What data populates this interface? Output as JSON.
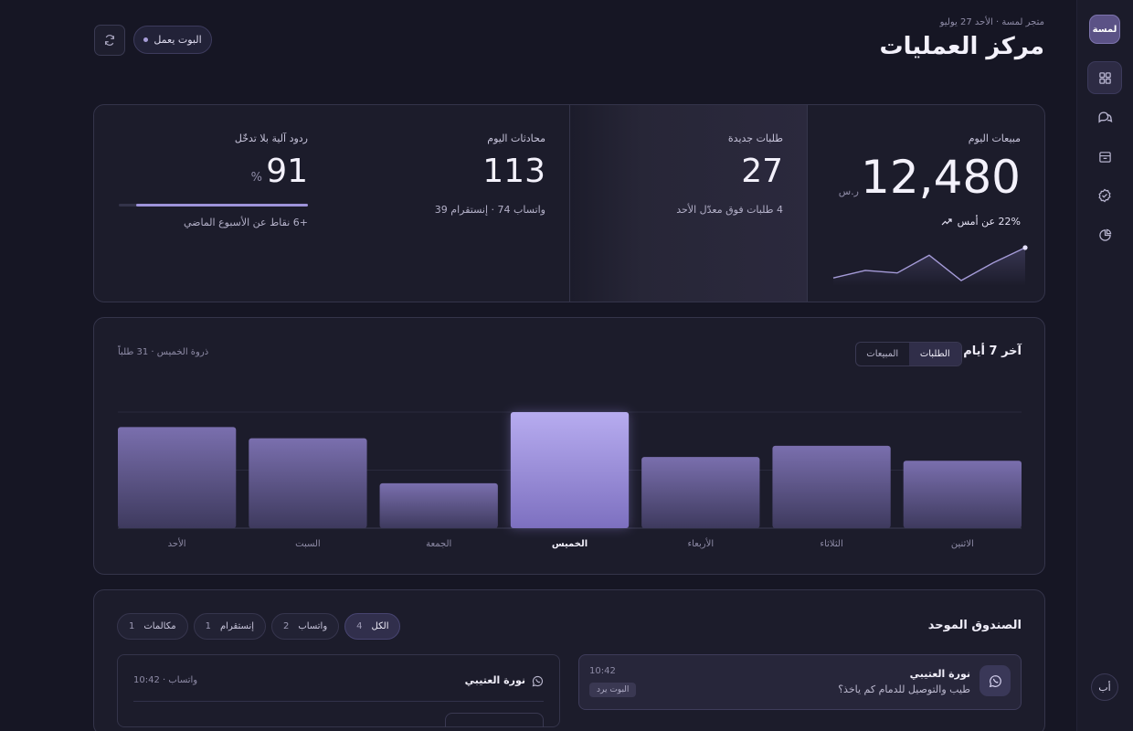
{
  "sidebar": {
    "brand": "لمسة",
    "items": [
      {
        "icon": "grid-icon"
      },
      {
        "icon": "chat-bubbles-icon"
      },
      {
        "icon": "archive-box-icon"
      },
      {
        "icon": "check-badge-icon"
      },
      {
        "icon": "pie-chart-icon"
      }
    ],
    "lang_toggle": "أب"
  },
  "header": {
    "crumb": "متجر لمسة · الأحد 27 يوليو",
    "title": "مركز العمليات",
    "bot_status": "البوت يعمل"
  },
  "kpis": {
    "sales": {
      "label": "مبيعات اليوم",
      "value": "12,480",
      "unit": "ر.س",
      "trend": "22% عن أمس",
      "sparkline": [
        18,
        21,
        20,
        27,
        17,
        24,
        30
      ]
    },
    "orders": {
      "label": "طلبات جديدة",
      "value": "27",
      "sub": "4 طلبات فوق معدّل الأحد"
    },
    "conversations": {
      "label": "محادثات اليوم",
      "value": "113",
      "sub": "واتساب 74 · إنستقرام 39"
    },
    "auto_replies": {
      "label": "ردود آلية بلا تدخّل",
      "value": "91",
      "unit": "%",
      "progress": 0.91,
      "sub": "+6 نقاط عن الأسبوع الماضي"
    }
  },
  "chart_section": {
    "title": "آخر 7 أيام",
    "tabs": [
      "الطلبات",
      "المبيعات"
    ],
    "active_tab": "الطلبات",
    "peak": "ذروة الخميس · 31 طلباً"
  },
  "chart_data": {
    "type": "bar",
    "categories": [
      "الأحد",
      "السبت",
      "الجمعة",
      "الخميس",
      "الأربعاء",
      "الثلاثاء",
      "الاثنين"
    ],
    "values": [
      27,
      24,
      12,
      31,
      19,
      22,
      18
    ],
    "highlight": "الخميس",
    "ylim": [
      0,
      31
    ]
  },
  "inbox": {
    "title": "الصندوق الموحد",
    "filters": [
      {
        "label": "الكل",
        "count": "4",
        "active": true
      },
      {
        "label": "واتساب",
        "count": "2",
        "active": false
      },
      {
        "label": "إنستقرام",
        "count": "1",
        "active": false
      },
      {
        "label": "مكالمات",
        "count": "1",
        "active": false
      }
    ],
    "messages": [
      {
        "name": "نورة العتيبي",
        "text": "طيب والتوصيل للدمام كم ياخذ؟",
        "time": "10:42",
        "tag": "البوت يرد",
        "channel_icon": "whatsapp-icon"
      },
      {
        "name": "نورة العتيبي",
        "meta": "واتساب · 10:42",
        "channel_icon": "whatsapp-icon"
      }
    ]
  }
}
